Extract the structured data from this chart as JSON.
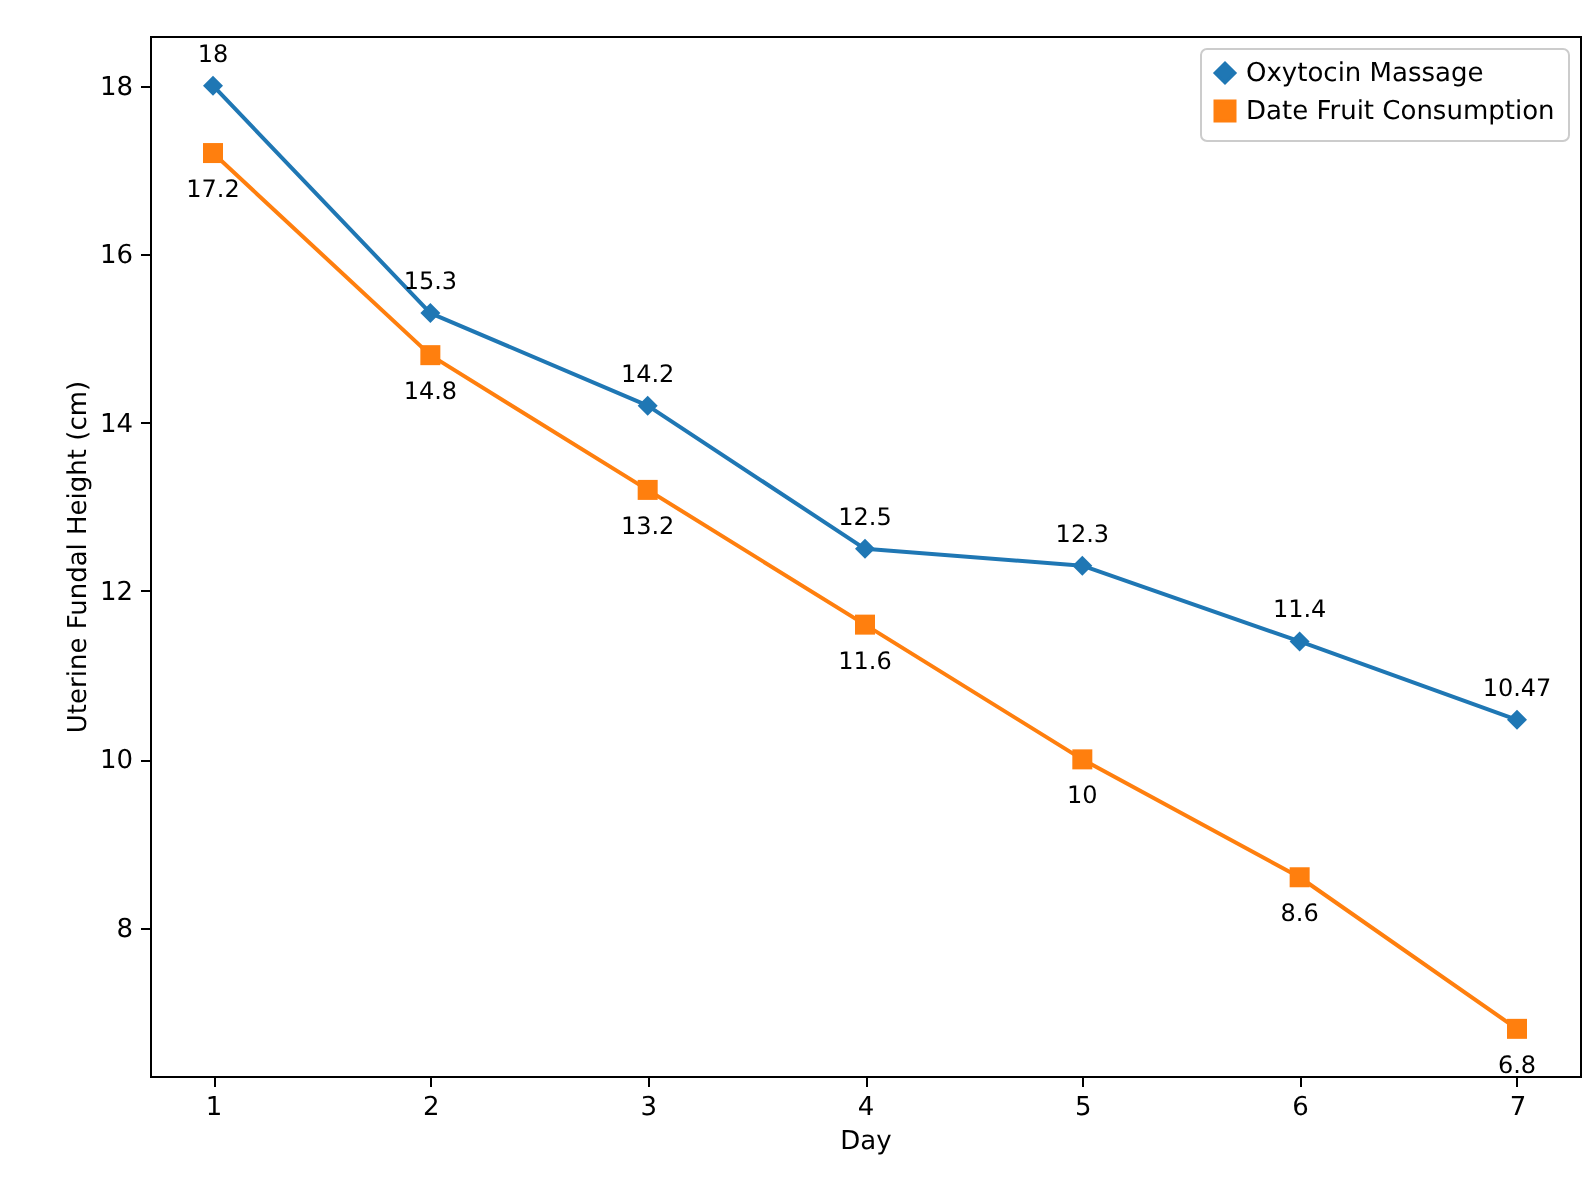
{
  "chart_data": {
    "type": "line",
    "xlabel": "Day",
    "ylabel": "Uterine Fundal Height (cm)",
    "x": [
      1,
      2,
      3,
      4,
      5,
      6,
      7
    ],
    "series": [
      {
        "name": "Oxytocin Massage",
        "color": "#1f77b4",
        "marker": "diamond",
        "values": [
          18,
          15.3,
          14.2,
          12.5,
          12.3,
          11.4,
          10.47
        ]
      },
      {
        "name": "Date Fruit Consumption",
        "color": "#ff7f0e",
        "marker": "square",
        "values": [
          17.2,
          14.8,
          13.2,
          11.6,
          10,
          8.6,
          6.8
        ]
      }
    ],
    "xlim": [
      0.71,
      7.29
    ],
    "xticks": [
      1,
      2,
      3,
      4,
      5,
      6,
      7
    ],
    "ylim": [
      6.24,
      18.59
    ],
    "yticks": [
      8,
      10,
      12,
      14,
      16,
      18
    ],
    "data_labels": true,
    "legend": "top right",
    "grid": false,
    "line_style": "solid"
  }
}
